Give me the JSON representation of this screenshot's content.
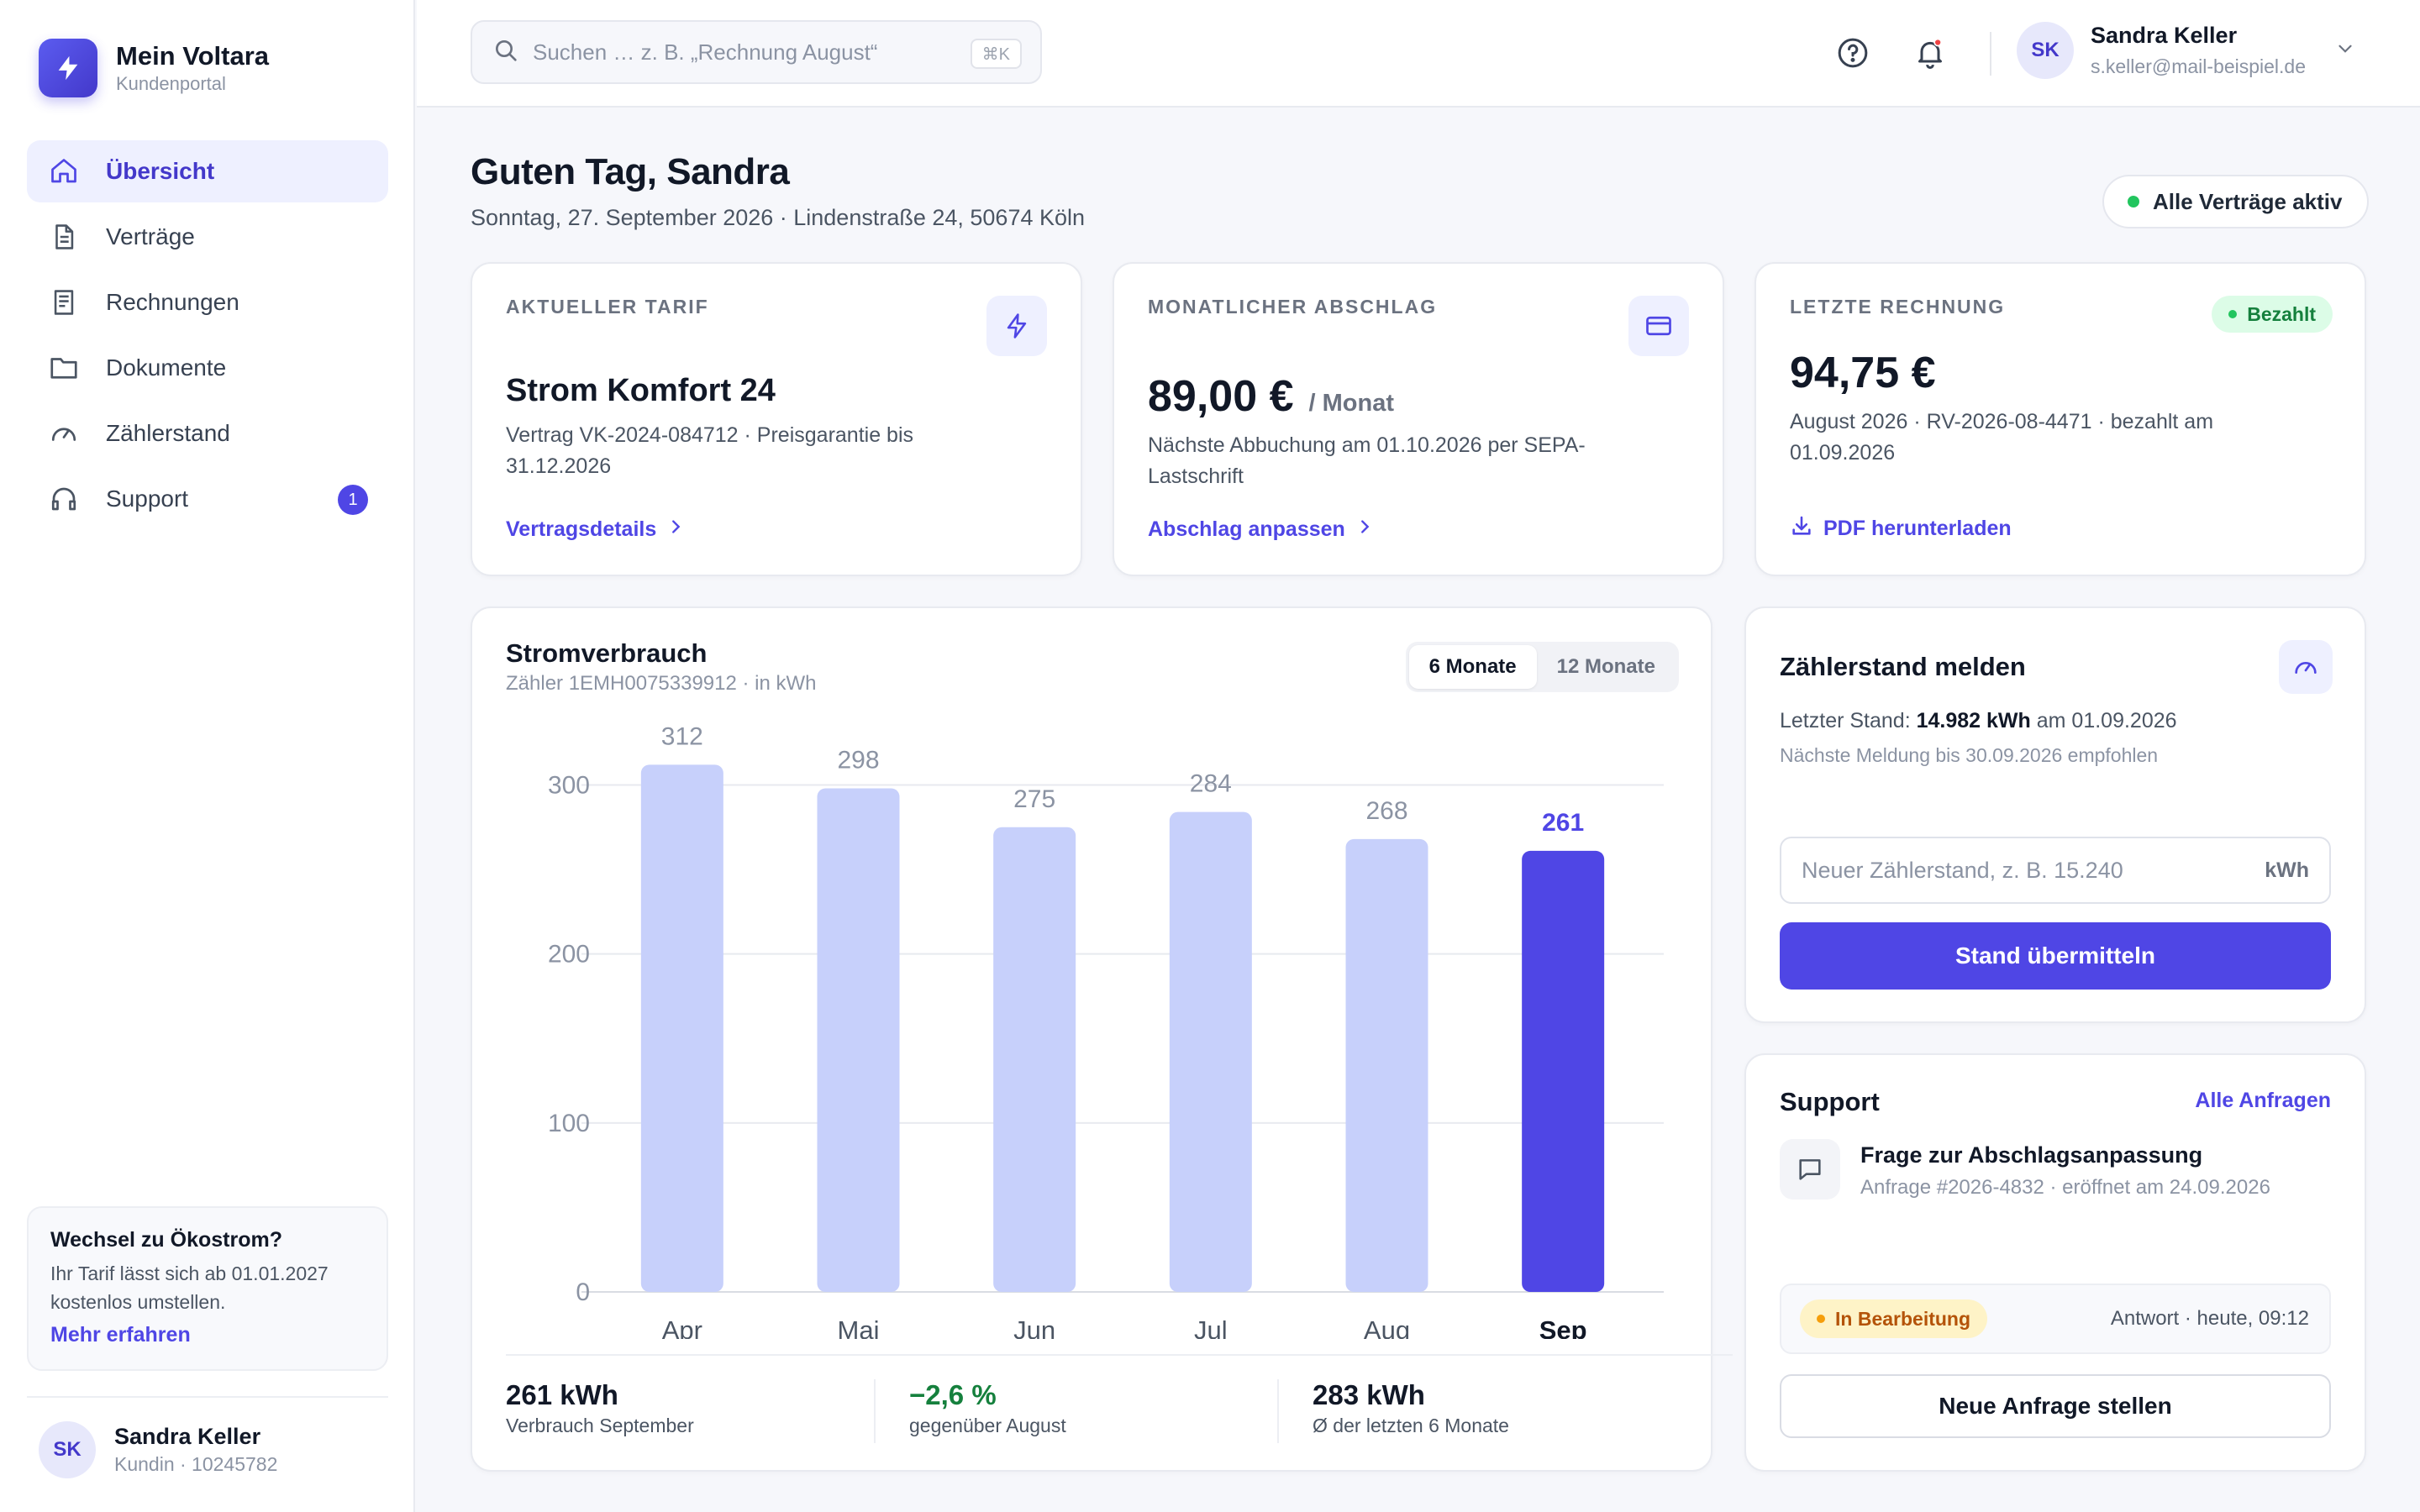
{
  "brand": {
    "name": "Mein Voltara",
    "subtitle": "Kundenportal"
  },
  "nav": [
    {
      "label": "Übersicht",
      "icon": "home-icon",
      "active": true
    },
    {
      "label": "Verträge",
      "icon": "document-icon"
    },
    {
      "label": "Rechnungen",
      "icon": "receipt-icon"
    },
    {
      "label": "Dokumente",
      "icon": "folder-icon"
    },
    {
      "label": "Zählerstand",
      "icon": "gauge-icon"
    },
    {
      "label": "Support",
      "icon": "headset-icon",
      "badge": "1"
    }
  ],
  "promo": {
    "title": "Wechsel zu Ökostrom?",
    "text": "Ihr Tarif lässt sich ab 01.01.2027 kostenlos umstellen.",
    "link": "Mehr erfahren"
  },
  "user": {
    "initials": "SK",
    "name": "Sandra Keller",
    "email": "s.keller@mail-beispiel.de",
    "customer": "Kundin · 10245782"
  },
  "search": {
    "placeholder": "Suchen … z. B. „Rechnung August“",
    "shortcut": "⌘K"
  },
  "greeting": {
    "title": "Guten Tag, Sandra",
    "subtitle": "Sonntag, 27. September 2026 · Lindenstraße 24, 50674 Köln",
    "status": "Alle Verträge aktiv"
  },
  "tariff": {
    "label": "AKTUELLER TARIF",
    "name": "Strom Komfort 24",
    "details": "Vertrag VK-2024-084712 · Preisgarantie bis 31.12.2026",
    "link": "Vertragsdetails"
  },
  "installment": {
    "label": "MONATLICHER ABSCHLAG",
    "amount": "89,00 €",
    "unit": "/ Monat",
    "details": "Nächste Abbuchung am 01.10.2026 per SEPA-Lastschrift",
    "link": "Abschlag anpassen"
  },
  "invoice": {
    "label": "LETZTE RECHNUNG",
    "badge": "Bezahlt",
    "amount": "94,75 €",
    "details": "August 2026 · RV-2026-08-4471 · bezahlt am 01.09.2026",
    "link": "PDF herunterladen"
  },
  "consumption": {
    "title": "Stromverbrauch",
    "subtitle": "Zähler 1EMH0075339912 · in kWh",
    "toggle": [
      "6 Monate",
      "12 Monate"
    ],
    "stats": [
      {
        "value": "261 kWh",
        "label": "Verbrauch September"
      },
      {
        "value": "−2,6 %",
        "label": "gegenüber August"
      },
      {
        "value": "283 kWh",
        "label": "Ø der letzten 6 Monate"
      }
    ]
  },
  "chart_data": {
    "type": "bar",
    "categories": [
      "Apr",
      "Mai",
      "Jun",
      "Jul",
      "Aug",
      "Sep"
    ],
    "values": [
      312,
      298,
      275,
      284,
      268,
      261
    ],
    "value_labels": [
      "312",
      "298",
      "275",
      "284",
      "268",
      "261"
    ],
    "highlight_index": 5,
    "yticks": [
      "0",
      "100",
      "200",
      "300"
    ],
    "ylim": [
      0,
      340
    ],
    "grid": true,
    "bar_color": "#c7d0fb",
    "highlight_color": "#4f46e5"
  },
  "meter": {
    "title": "Zählerstand melden",
    "last_prefix": "Letzter Stand:",
    "last_value": "14.982 kWh",
    "last_suffix": "am 01.09.2026",
    "next": "Nächste Meldung bis 30.09.2026 empfohlen",
    "input_placeholder": "Neuer Zählerstand, z. B. 15.240",
    "unit": "kWh",
    "submit": "Stand übermitteln"
  },
  "support": {
    "title": "Support",
    "all_link": "Alle Anfragen",
    "ticket_title": "Frage zur Abschlagsanpassung",
    "ticket_meta": "Anfrage #2026-4832 · eröffnet am 24.09.2026",
    "status": "In Bearbeitung",
    "reply": "Antwort · heute, 09:12",
    "new_request": "Neue Anfrage stellen"
  }
}
